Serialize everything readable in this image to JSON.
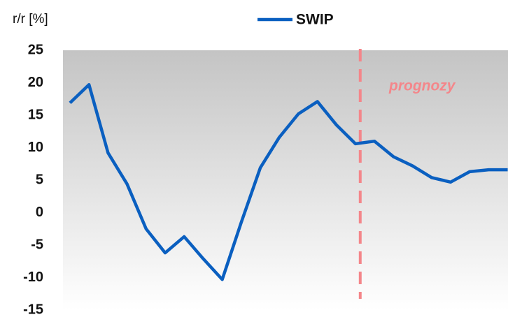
{
  "chart_data": {
    "type": "line",
    "y_axis_label": "r/r  [%]",
    "categories": [
      null,
      null,
      null,
      null,
      null,
      null,
      null,
      null,
      null,
      null,
      null,
      null,
      null,
      null,
      null,
      null,
      null,
      null,
      null,
      null,
      null,
      null,
      null,
      null
    ],
    "series": [
      {
        "name": "SWIP",
        "color": "#0a5fc0",
        "values": [
          16.9,
          19.7,
          9.2,
          4.4,
          -2.5,
          -6.2,
          -3.7,
          -7.1,
          -10.3,
          -1.5,
          6.9,
          11.6,
          15.2,
          17.1,
          13.5,
          10.6,
          11.0,
          8.6,
          7.2,
          5.4,
          4.7,
          6.3,
          6.6,
          6.6
        ]
      }
    ],
    "annotation": {
      "text": "prognozy",
      "color": "#f4868a"
    },
    "ylim": [
      -15,
      25
    ],
    "yticks": [
      -15,
      -10,
      -5,
      0,
      5,
      10,
      15,
      20,
      25
    ],
    "legend": "top"
  }
}
